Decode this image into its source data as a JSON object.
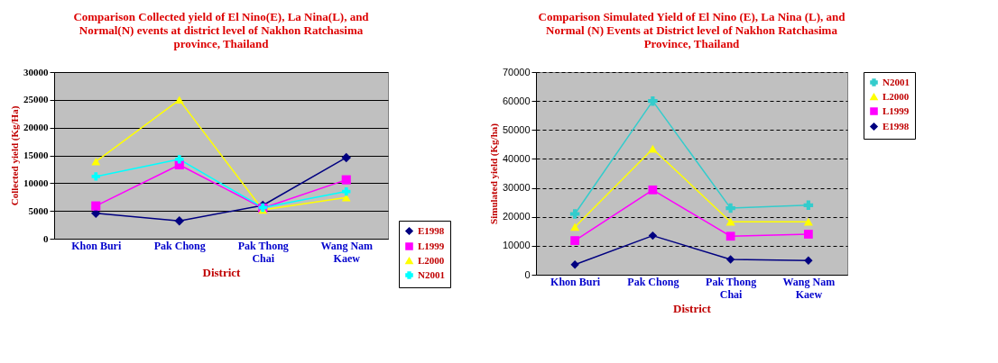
{
  "chart_data": [
    {
      "type": "line",
      "title": "Comparison Collected yield of El Nino(E), La Nina(L), and Normal(N) events at district level of Nakhon Ratchasima province, Thailand",
      "xlabel": "District",
      "ylabel": "Collected yield (Kg/Ha)",
      "categories": [
        "Khon Buri",
        "Pak Chong",
        "Pak Thong Chai",
        "Wang Nam Kaew"
      ],
      "ylim": [
        0,
        30000
      ],
      "yticks": [
        0,
        5000,
        10000,
        15000,
        20000,
        25000,
        30000
      ],
      "grid": "y",
      "legend": "bottom right",
      "series": [
        {
          "name": "E1998",
          "color": "#000080",
          "marker": "diamond",
          "values": [
            4600,
            3200,
            6000,
            14600
          ]
        },
        {
          "name": "L1999",
          "color": "#ff00ff",
          "marker": "square",
          "values": [
            5900,
            13300,
            5500,
            10600
          ]
        },
        {
          "name": "L2000",
          "color": "#ffff00",
          "marker": "triangle",
          "values": [
            13900,
            25000,
            5200,
            7400
          ]
        },
        {
          "name": "N2001",
          "color": "#00ffff",
          "marker": "cross",
          "values": [
            11200,
            14300,
            5600,
            8500
          ]
        }
      ]
    },
    {
      "type": "line",
      "title": "Comparison Simulated Yield of El Nino (E), La Nina (L), and Normal (N) Events at District level of Nakhon Ratchasima Province, Thailand",
      "xlabel": "District",
      "ylabel": "Simulated yield (Kg/ha)",
      "categories": [
        "Khon Buri",
        "Pak Chong",
        "Pak Thong Chai",
        "Wang Nam Kaew"
      ],
      "ylim": [
        0,
        70000
      ],
      "yticks": [
        0,
        10000,
        20000,
        30000,
        40000,
        50000,
        60000,
        70000
      ],
      "grid": "y",
      "legend": "right",
      "series": [
        {
          "name": "N2001",
          "color": "#33cccc",
          "marker": "cross",
          "values": [
            21000,
            60000,
            23000,
            24000
          ]
        },
        {
          "name": "L2000",
          "color": "#ffff00",
          "marker": "triangle",
          "values": [
            16500,
            43500,
            18300,
            18300
          ]
        },
        {
          "name": "L1999",
          "color": "#ff00ff",
          "marker": "square",
          "values": [
            11800,
            29300,
            13300,
            14000
          ]
        },
        {
          "name": "E1998",
          "color": "#000080",
          "marker": "diamond",
          "values": [
            3500,
            13500,
            5300,
            4900
          ]
        }
      ]
    }
  ]
}
